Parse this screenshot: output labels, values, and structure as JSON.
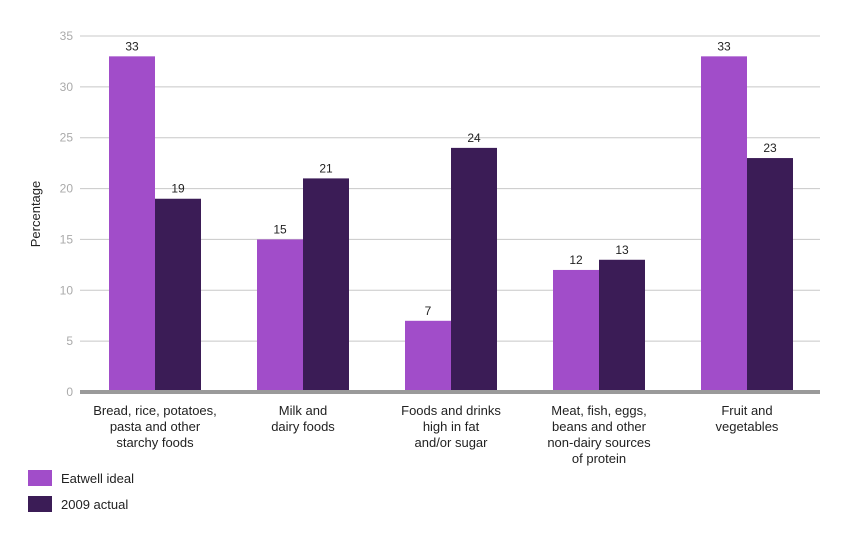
{
  "chart_data": {
    "type": "bar",
    "title": "",
    "xlabel": "",
    "ylabel": "Percentage",
    "ylim": [
      0,
      35
    ],
    "yticks": [
      0,
      5,
      10,
      15,
      20,
      25,
      30,
      35
    ],
    "grid": true,
    "legend_placement": "bottom-left",
    "categories": [
      [
        "Bread, rice, potatoes,",
        "pasta and other",
        "starchy foods"
      ],
      [
        "Milk and",
        "dairy foods"
      ],
      [
        "Foods and drinks",
        "high in fat",
        "and/or sugar"
      ],
      [
        "Meat, fish, eggs,",
        "beans and other",
        "non-dairy sources",
        "of protein"
      ],
      [
        "Fruit and",
        "vegetables"
      ]
    ],
    "series": [
      {
        "name": "Eatwell ideal",
        "color": "#a14dc9",
        "values": [
          33,
          15,
          7,
          12,
          33
        ]
      },
      {
        "name": "2009 actual",
        "color": "#3b1c56",
        "values": [
          19,
          21,
          24,
          13,
          23
        ]
      }
    ]
  }
}
